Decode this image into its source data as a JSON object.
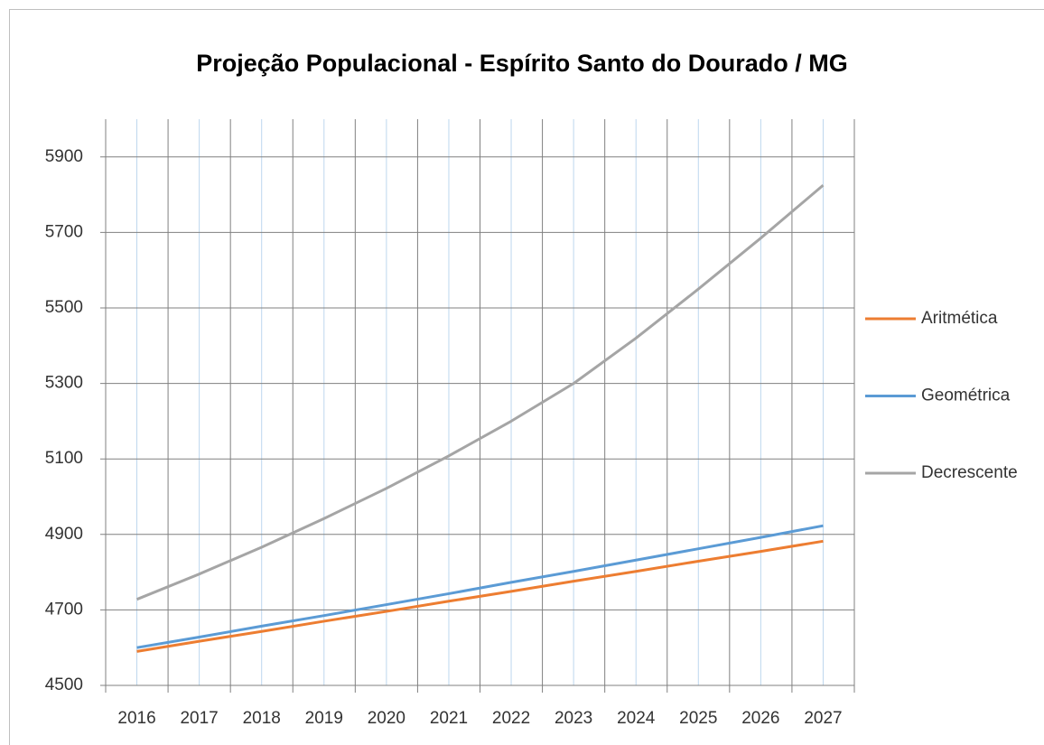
{
  "chart_data": {
    "type": "line",
    "title": "Projeção Populacional - Espírito Santo do Dourado / MG",
    "categories": [
      "2016",
      "2017",
      "2018",
      "2019",
      "2020",
      "2021",
      "2022",
      "2023",
      "2024",
      "2025",
      "2026",
      "2027"
    ],
    "series": [
      {
        "name": "Aritmética",
        "color": "#ed7d31",
        "values": [
          4590,
          4617,
          4643,
          4670,
          4696,
          4723,
          4749,
          4776,
          4802,
          4829,
          4855,
          4882
        ]
      },
      {
        "name": "Geométrica",
        "color": "#5b9bd5",
        "values": [
          4600,
          4628,
          4657,
          4685,
          4714,
          4743,
          4773,
          4802,
          4832,
          4862,
          4892,
          4923
        ]
      },
      {
        "name": "Decrescente",
        "color": "#a5a5a5",
        "values": [
          4728,
          4795,
          4866,
          4942,
          5022,
          5108,
          5200,
          5300,
          5420,
          5550,
          5685,
          5825
        ]
      }
    ],
    "ylim": [
      4500,
      6000
    ],
    "yticks": [
      4500,
      4700,
      4900,
      5100,
      5300,
      5500,
      5700,
      5900
    ],
    "grid": true,
    "legend": "right"
  }
}
